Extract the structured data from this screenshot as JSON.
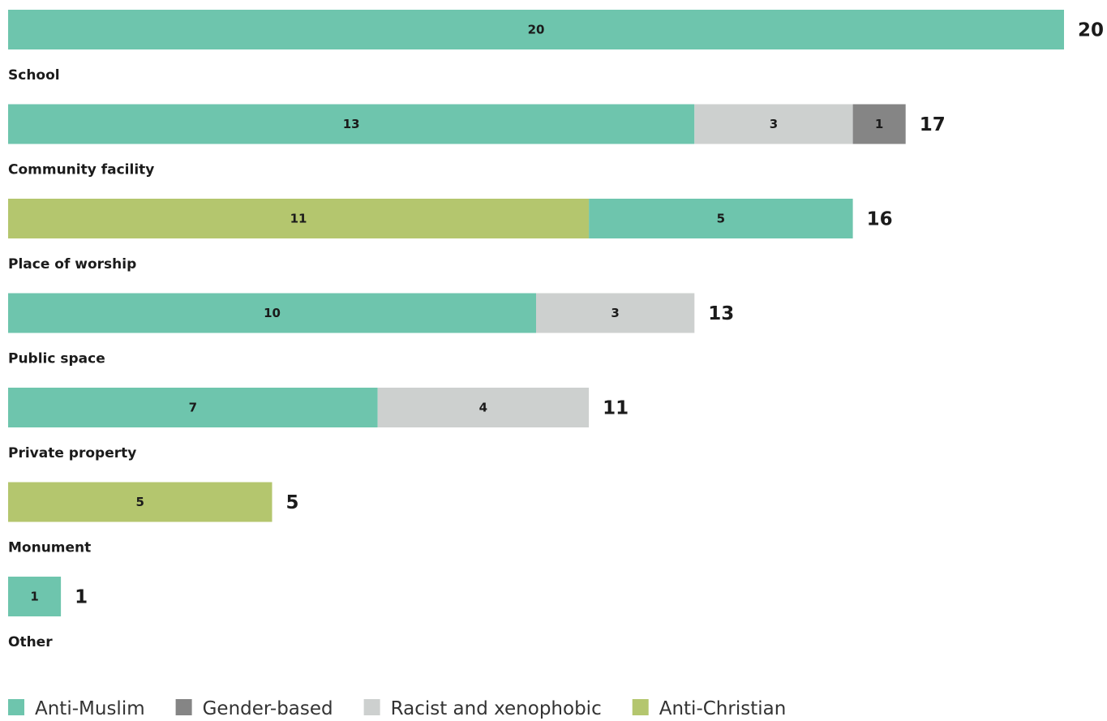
{
  "chart_data": {
    "type": "bar",
    "orientation": "horizontal",
    "stacked": true,
    "categories": [
      "School",
      "Community facility",
      "Place of worship",
      "Public space",
      "Private property",
      "Monument",
      "Other"
    ],
    "series": [
      {
        "name": "Anti-Muslim",
        "color": "#6ec5ad",
        "values": [
          20,
          13,
          5,
          10,
          7,
          0,
          1
        ]
      },
      {
        "name": "Gender-based",
        "color": "#858585",
        "values": [
          0,
          1,
          0,
          0,
          0,
          0,
          0
        ]
      },
      {
        "name": "Racist and xenophobic",
        "color": "#cdd0cf",
        "values": [
          0,
          3,
          0,
          3,
          4,
          0,
          0
        ]
      },
      {
        "name": "Anti-Christian",
        "color": "#b4c66e",
        "values": [
          0,
          0,
          11,
          0,
          0,
          5,
          0
        ]
      }
    ],
    "bar_segment_order": [
      [
        "Anti-Muslim"
      ],
      [
        "Anti-Muslim",
        "Racist and xenophobic",
        "Gender-based"
      ],
      [
        "Anti-Christian",
        "Anti-Muslim"
      ],
      [
        "Anti-Muslim",
        "Racist and xenophobic"
      ],
      [
        "Anti-Muslim",
        "Racist and xenophobic"
      ],
      [
        "Anti-Christian"
      ],
      [
        "Anti-Muslim"
      ]
    ],
    "totals": [
      20,
      17,
      16,
      13,
      11,
      5,
      1
    ],
    "xlim": [
      0,
      20
    ],
    "grid": false,
    "legend_position": "bottom-left",
    "title": "",
    "xlabel": "",
    "ylabel": ""
  }
}
